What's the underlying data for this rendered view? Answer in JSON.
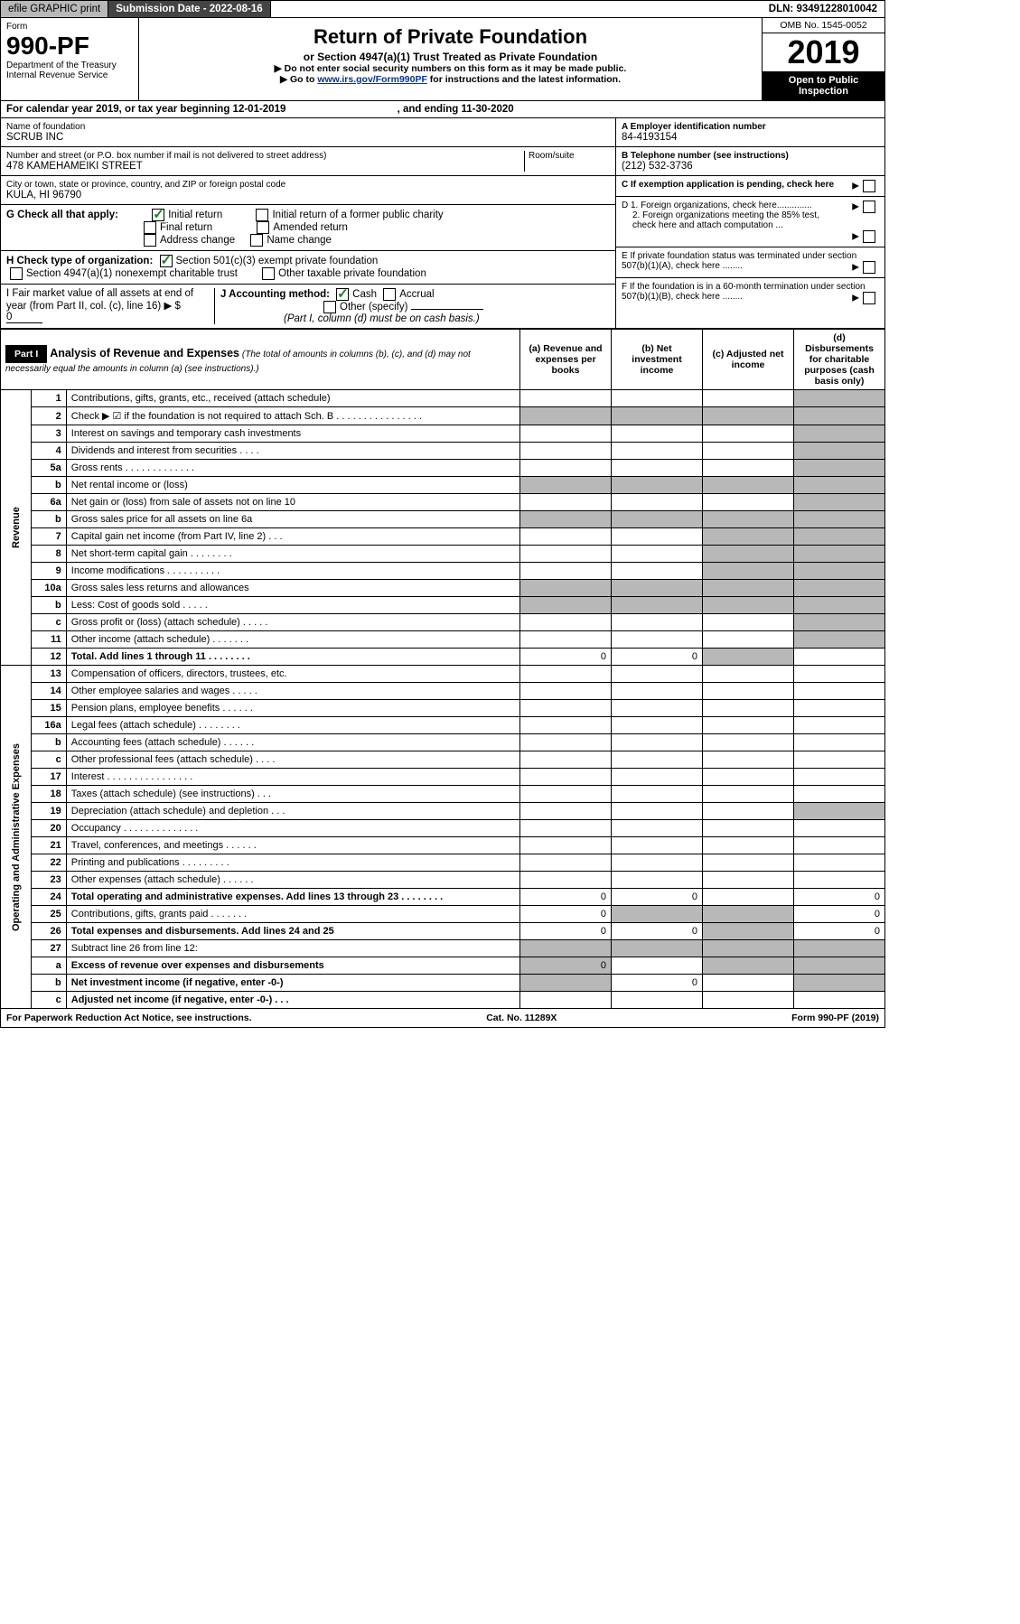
{
  "topbar": {
    "efile": "efile GRAPHIC print",
    "submission_label": "Submission Date - 2022-08-16",
    "dln": "DLN: 93491228010042"
  },
  "header": {
    "form_label": "Form",
    "form_no": "990-PF",
    "dept": "Department of the Treasury",
    "irs": "Internal Revenue Service",
    "title": "Return of Private Foundation",
    "subtitle": "or Section 4947(a)(1) Trust Treated as Private Foundation",
    "note1": "▶ Do not enter social security numbers on this form as it may be made public.",
    "note2_pre": "▶ Go to ",
    "note2_link": "www.irs.gov/Form990PF",
    "note2_post": " for instructions and the latest information.",
    "omb": "OMB No. 1545-0052",
    "year": "2019",
    "open": "Open to Public Inspection"
  },
  "period": {
    "text_a": "For calendar year 2019, or tax year beginning ",
    "begin": "12-01-2019",
    "text_b": ", and ending ",
    "end": "11-30-2020"
  },
  "id": {
    "name_label": "Name of foundation",
    "name": "SCRUB INC",
    "addr_label": "Number and street (or P.O. box number if mail is not delivered to street address)",
    "room_label": "Room/suite",
    "addr": "478 KAMEHAMEIKI STREET",
    "city_label": "City or town, state or province, country, and ZIP or foreign postal code",
    "city": "KULA, HI  96790",
    "a_label": "A Employer identification number",
    "a_val": "84-4193154",
    "b_label": "B Telephone number (see instructions)",
    "b_val": "(212) 532-3736",
    "c_label": "C If exemption application is pending, check here",
    "d1": "D 1. Foreign organizations, check here..............",
    "d2": "2. Foreign organizations meeting the 85% test, check here and attach computation ...",
    "e": "E  If private foundation status was terminated under section 507(b)(1)(A), check here ........",
    "f": "F  If the foundation is in a 60-month termination under section 507(b)(1)(B), check here ........"
  },
  "g": {
    "label": "G Check all that apply:",
    "opts": [
      "Initial return",
      "Initial return of a former public charity",
      "Final return",
      "Amended return",
      "Address change",
      "Name change"
    ]
  },
  "h": {
    "label": "H Check type of organization:",
    "o1": "Section 501(c)(3) exempt private foundation",
    "o2": "Section 4947(a)(1) nonexempt charitable trust",
    "o3": "Other taxable private foundation"
  },
  "i": {
    "label": "I Fair market value of all assets at end of year (from Part II, col. (c), line 16) ▶ $",
    "val": "0"
  },
  "j": {
    "label": "J Accounting method:",
    "cash": "Cash",
    "accrual": "Accrual",
    "other": "Other (specify)",
    "note": "(Part I, column (d) must be on cash basis.)"
  },
  "part1": {
    "label": "Part I",
    "title": "Analysis of Revenue and Expenses",
    "subtitle": "(The total of amounts in columns (b), (c), and (d) may not necessarily equal the amounts in column (a) (see instructions).)",
    "cols": {
      "a": "(a) Revenue and expenses per books",
      "b": "(b) Net investment income",
      "c": "(c) Adjusted net income",
      "d": "(d) Disbursements for charitable purposes (cash basis only)"
    }
  },
  "sections": {
    "rev": "Revenue",
    "op": "Operating and Administrative Expenses"
  },
  "rows": [
    {
      "n": "1",
      "d": "Contributions, gifts, grants, etc., received (attach schedule)"
    },
    {
      "n": "2",
      "d": "Check ▶ ☑ if the foundation is not required to attach Sch. B  .  .  .  .  .  .  .  .  .  .  .  .  .  .  .  ."
    },
    {
      "n": "3",
      "d": "Interest on savings and temporary cash investments"
    },
    {
      "n": "4",
      "d": "Dividends and interest from securities  .  .  .  ."
    },
    {
      "n": "5a",
      "d": "Gross rents  .  .  .  .  .  .  .  .  .  .  .  .  ."
    },
    {
      "n": "b",
      "d": "Net rental income or (loss)"
    },
    {
      "n": "6a",
      "d": "Net gain or (loss) from sale of assets not on line 10"
    },
    {
      "n": "b",
      "d": "Gross sales price for all assets on line 6a"
    },
    {
      "n": "7",
      "d": "Capital gain net income (from Part IV, line 2)  .  .  ."
    },
    {
      "n": "8",
      "d": "Net short-term capital gain  .  .  .  .  .  .  .  ."
    },
    {
      "n": "9",
      "d": "Income modifications  .  .  .  .  .  .  .  .  .  ."
    },
    {
      "n": "10a",
      "d": "Gross sales less returns and allowances"
    },
    {
      "n": "b",
      "d": "Less: Cost of goods sold  .  .  .  .  ."
    },
    {
      "n": "c",
      "d": "Gross profit or (loss) (attach schedule)  .  .  .  .  ."
    },
    {
      "n": "11",
      "d": "Other income (attach schedule)  .  .  .  .  .  .  ."
    },
    {
      "n": "12",
      "d": "Total. Add lines 1 through 11  .  .  .  .  .  .  .  .",
      "a": "0",
      "b": "0",
      "bold": true
    },
    {
      "n": "13",
      "d": "Compensation of officers, directors, trustees, etc."
    },
    {
      "n": "14",
      "d": "Other employee salaries and wages  .  .  .  .  ."
    },
    {
      "n": "15",
      "d": "Pension plans, employee benefits  .  .  .  .  .  ."
    },
    {
      "n": "16a",
      "d": "Legal fees (attach schedule)  .  .  .  .  .  .  .  ."
    },
    {
      "n": "b",
      "d": "Accounting fees (attach schedule)  .  .  .  .  .  ."
    },
    {
      "n": "c",
      "d": "Other professional fees (attach schedule)  .  .  .  ."
    },
    {
      "n": "17",
      "d": "Interest  .  .  .  .  .  .  .  .  .  .  .  .  .  .  .  ."
    },
    {
      "n": "18",
      "d": "Taxes (attach schedule) (see instructions)  .  .  ."
    },
    {
      "n": "19",
      "d": "Depreciation (attach schedule) and depletion  .  .  ."
    },
    {
      "n": "20",
      "d": "Occupancy  .  .  .  .  .  .  .  .  .  .  .  .  .  ."
    },
    {
      "n": "21",
      "d": "Travel, conferences, and meetings  .  .  .  .  .  ."
    },
    {
      "n": "22",
      "d": "Printing and publications  .  .  .  .  .  .  .  .  ."
    },
    {
      "n": "23",
      "d": "Other expenses (attach schedule)  .  .  .  .  .  ."
    },
    {
      "n": "24",
      "d": "Total operating and administrative expenses. Add lines 13 through 23  .  .  .  .  .  .  .  .",
      "a": "0",
      "b": "0",
      "dd": "0",
      "bold": true
    },
    {
      "n": "25",
      "d": "Contributions, gifts, grants paid  .  .  .  .  .  .  .",
      "a": "0",
      "dd": "0"
    },
    {
      "n": "26",
      "d": "Total expenses and disbursements. Add lines 24 and 25",
      "a": "0",
      "b": "0",
      "dd": "0",
      "bold": true
    },
    {
      "n": "27",
      "d": "Subtract line 26 from line 12:"
    },
    {
      "n": "a",
      "d": "Excess of revenue over expenses and disbursements",
      "a": "0",
      "bold": true
    },
    {
      "n": "b",
      "d": "Net investment income (if negative, enter -0-)",
      "b": "0",
      "bold": true
    },
    {
      "n": "c",
      "d": "Adjusted net income (if negative, enter -0-)  .  .  .",
      "bold": true
    }
  ],
  "shadeMap": {
    "1": [
      "d"
    ],
    "2": [
      "a",
      "b",
      "c",
      "d"
    ],
    "5b": [
      "a",
      "b",
      "c",
      "d"
    ],
    "6b": [
      "a",
      "b",
      "c",
      "d"
    ],
    "7": [
      "c",
      "d"
    ],
    "8": [
      "a",
      "d"
    ],
    "9": [
      "a",
      "d"
    ],
    "10a": [
      "a",
      "b",
      "c",
      "d"
    ],
    "10b": [
      "a",
      "b",
      "c",
      "d"
    ],
    "c_10": [
      "d"
    ],
    "11": [
      "d"
    ],
    "12": [
      "c",
      "d"
    ],
    "19": [
      "d"
    ],
    "25": [
      "b",
      "c"
    ],
    "26": [
      "c"
    ],
    "27": [
      "a",
      "b",
      "c",
      "d"
    ],
    "a_27": [
      "b",
      "c",
      "d"
    ],
    "b_27": [
      "a",
      "c",
      "d"
    ],
    "c_final": [
      "a",
      "d"
    ]
  },
  "footer": {
    "left": "For Paperwork Reduction Act Notice, see instructions.",
    "mid": "Cat. No. 11289X",
    "right": "Form 990-PF (2019)"
  }
}
